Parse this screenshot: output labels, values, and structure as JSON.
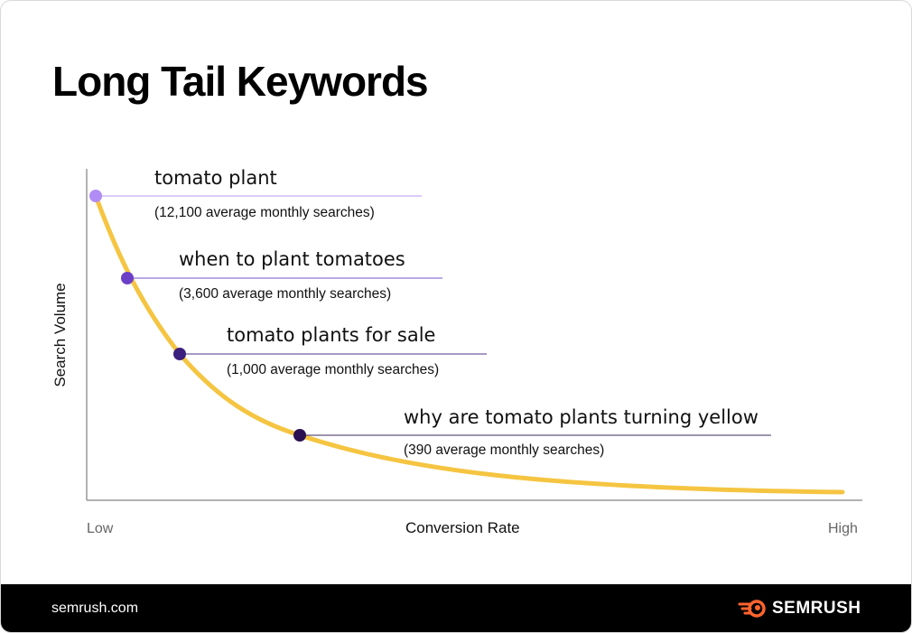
{
  "title": "Long Tail Keywords",
  "footer": {
    "site": "semrush.com",
    "brand": "SEMRUSH",
    "brand_color": "#ff642d"
  },
  "chart_data": {
    "type": "line",
    "title": "Long Tail Keywords",
    "xlabel": "Conversion Rate",
    "ylabel": "Search Volume",
    "x_ticks": [
      "Low",
      "High"
    ],
    "curve_color": "#f5c542",
    "grid": false,
    "points": [
      {
        "keyword": "tomato plant",
        "searches": 12100,
        "label": "(12,100 average monthly searches)",
        "color": "#b18cf5"
      },
      {
        "keyword": "when to plant tomatoes",
        "searches": 3600,
        "label": "(3,600 average monthly searches)",
        "color": "#6c3fc8"
      },
      {
        "keyword": "tomato plants for sale",
        "searches": 1000,
        "label": "(1,000 average monthly searches)",
        "color": "#3b1f7e"
      },
      {
        "keyword": "why are tomato plants turning yellow",
        "searches": 390,
        "label": "(390 average monthly searches)",
        "color": "#2a1050"
      }
    ]
  }
}
